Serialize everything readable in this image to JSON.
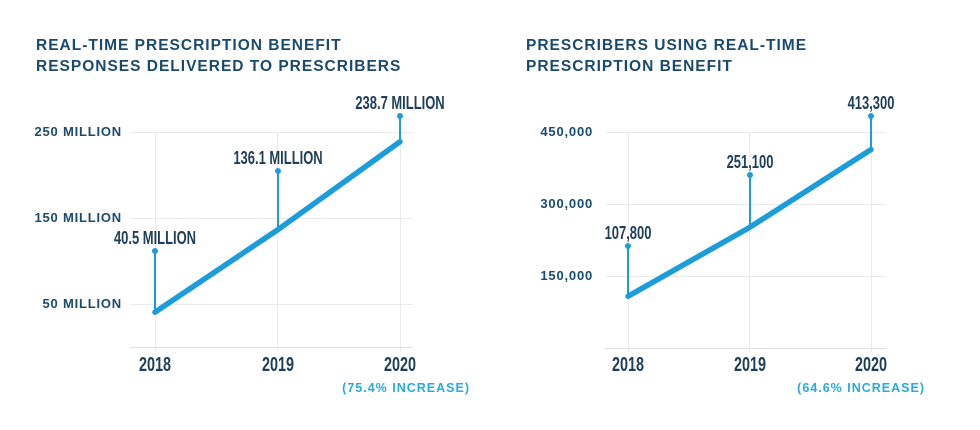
{
  "colors": {
    "navy_text": "#1A4A6E",
    "condensed_label_text": "#1E3E59",
    "line_cyan": "#1C9DD9",
    "note_cyan": "#29A9E1",
    "gridline_gray": "#EAEAEA",
    "background": "#FFFFFF"
  },
  "chart_data": [
    {
      "type": "line",
      "title_lines": [
        "REAL-TIME PRESCRIPTION BENEFIT",
        "RESPONSES DELIVERED TO PRESCRIBERS"
      ],
      "categories": [
        "2018",
        "2019",
        "2020"
      ],
      "values": [
        40.5,
        136.1,
        238.7
      ],
      "point_labels": [
        "40.5 MILLION",
        "136.1 MILLION",
        "238.7 MILLION"
      ],
      "y_ticks": [
        {
          "value": 50,
          "label": "50 MILLION"
        },
        {
          "value": 150,
          "label": "150 MILLION"
        },
        {
          "value": 250,
          "label": "250 MILLION"
        }
      ],
      "ylim": [
        0,
        250
      ],
      "grid": true,
      "legend": "none",
      "annotation": "(75.4% INCREASE)"
    },
    {
      "type": "line",
      "title_lines": [
        "PRESCRIBERS USING REAL-TIME",
        "PRESCRIPTION BENEFIT"
      ],
      "categories": [
        "2018",
        "2019",
        "2020"
      ],
      "values": [
        107800,
        251100,
        413300
      ],
      "point_labels": [
        "107,800",
        "251,100",
        "413,300"
      ],
      "y_ticks": [
        {
          "value": 150000,
          "label": "150,000"
        },
        {
          "value": 300000,
          "label": "300,000"
        },
        {
          "value": 450000,
          "label": "450,000"
        }
      ],
      "ylim": [
        0,
        450000
      ],
      "grid": true,
      "legend": "none",
      "annotation": "(64.6% INCREASE)"
    }
  ]
}
